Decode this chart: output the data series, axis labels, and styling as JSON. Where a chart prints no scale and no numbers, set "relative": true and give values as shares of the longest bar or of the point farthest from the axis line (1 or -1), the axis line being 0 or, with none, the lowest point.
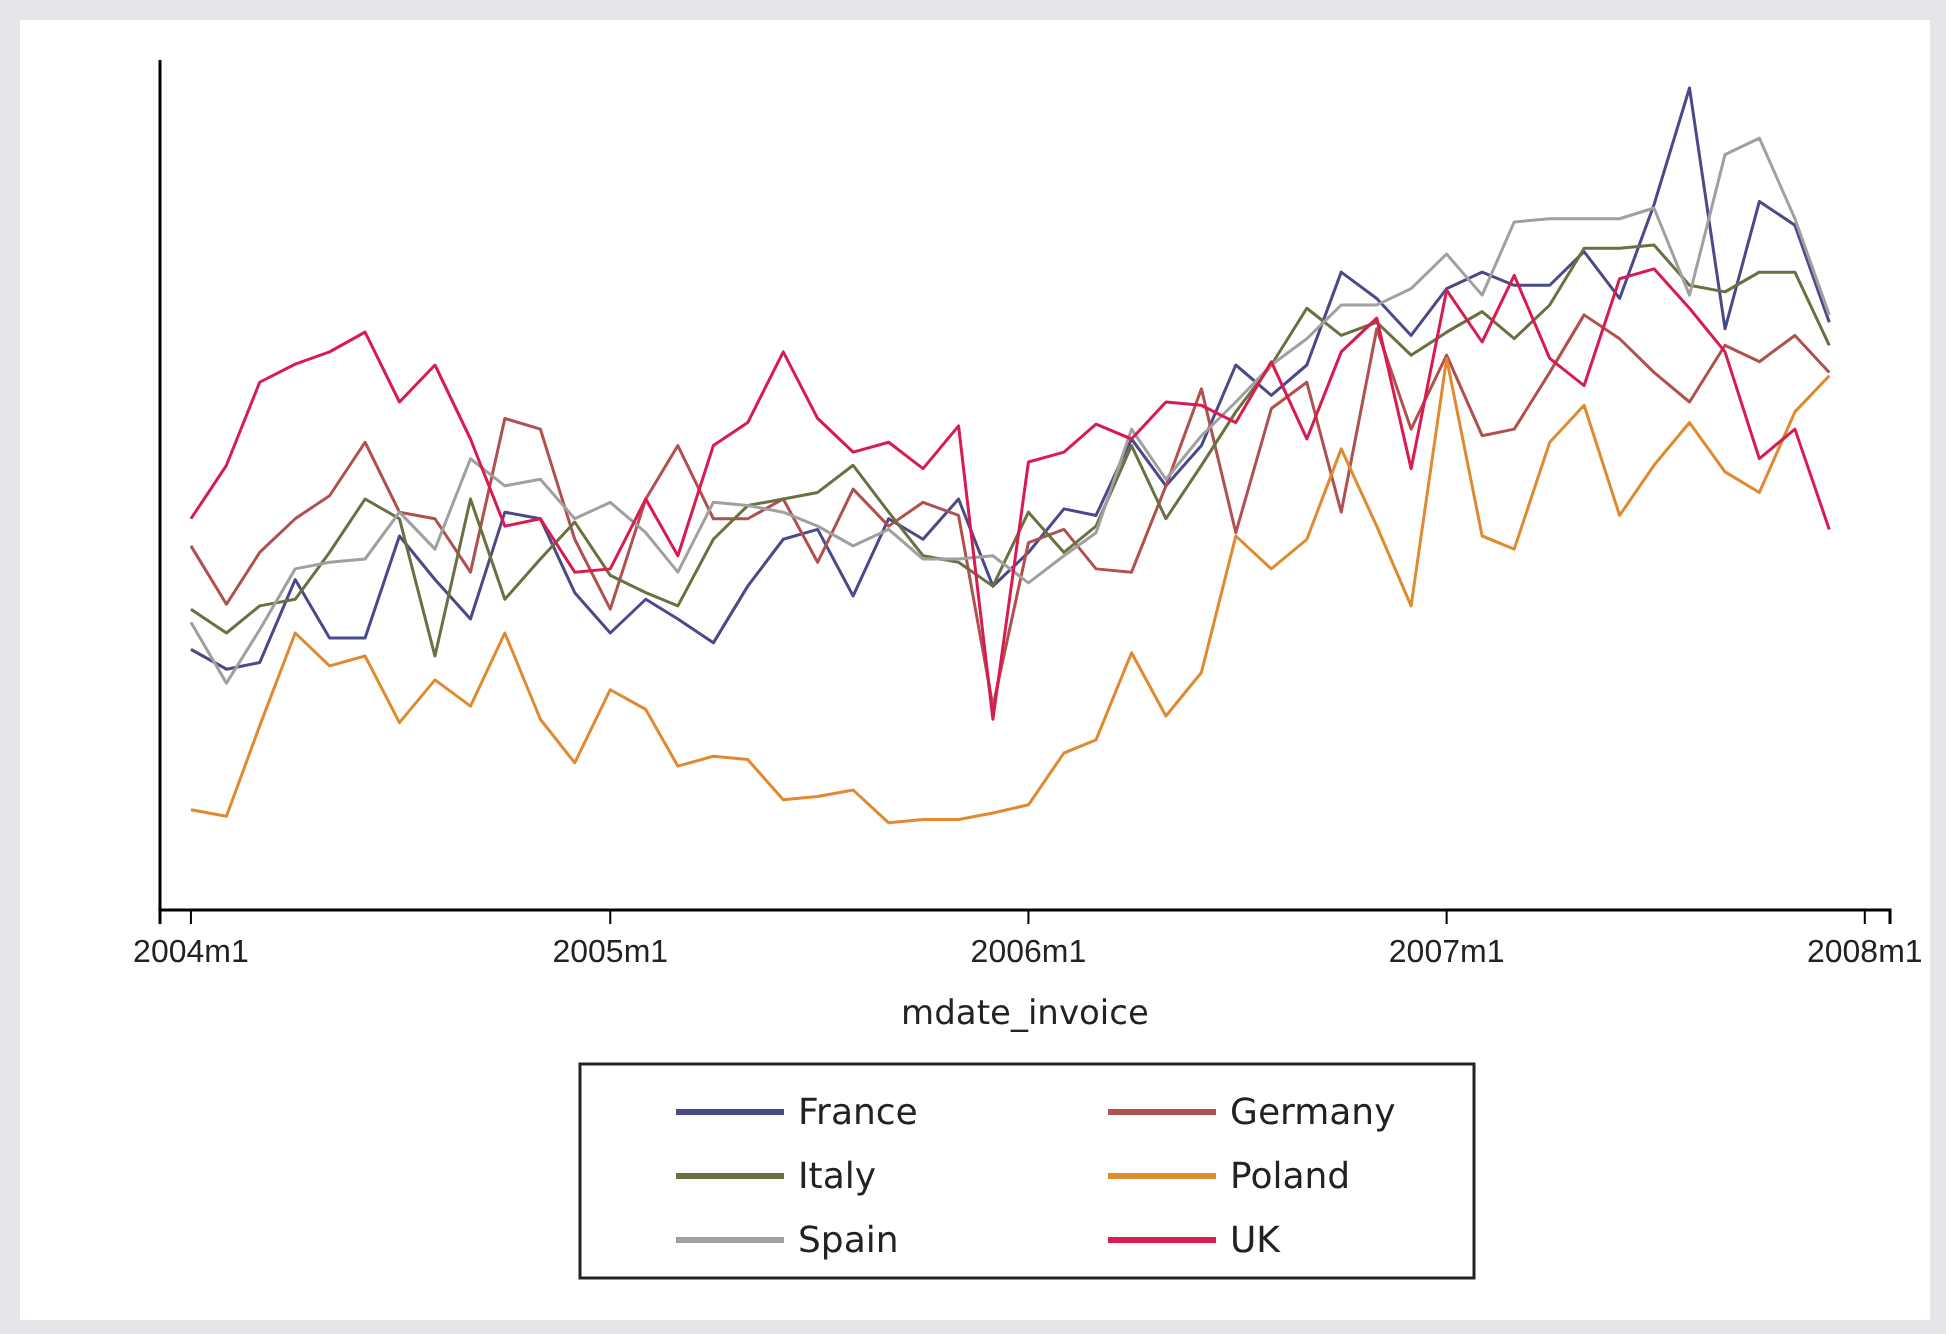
{
  "chart_data": {
    "type": "line",
    "relative": true,
    "xlabel": "mdate_invoice",
    "legend": "bottom",
    "x": [
      "2004-01",
      "2004-02",
      "2004-03",
      "2004-04",
      "2004-05",
      "2004-06",
      "2004-07",
      "2004-08",
      "2004-09",
      "2004-10",
      "2004-11",
      "2004-12",
      "2005-01",
      "2005-02",
      "2005-03",
      "2005-04",
      "2005-05",
      "2005-06",
      "2005-07",
      "2005-08",
      "2005-09",
      "2005-10",
      "2005-11",
      "2005-12",
      "2006-01",
      "2006-02",
      "2006-03",
      "2006-04",
      "2006-05",
      "2006-06",
      "2006-07",
      "2006-08",
      "2006-09",
      "2006-10",
      "2006-11",
      "2006-12",
      "2007-01",
      "2007-02",
      "2007-03",
      "2007-04",
      "2007-05",
      "2007-06",
      "2007-07",
      "2007-08",
      "2007-09",
      "2007-10",
      "2007-11",
      "2007-12"
    ],
    "xlim": [
      "2003-12-05",
      "2008-01-23"
    ],
    "xticks": [
      {
        "value": "2004-01",
        "label": "2004m1"
      },
      {
        "value": "2005-01",
        "label": "2005m1"
      },
      {
        "value": "2006-01",
        "label": "2006m1"
      },
      {
        "value": "2007-01",
        "label": "2007m1"
      },
      {
        "value": "2008-01",
        "label": "2008m1"
      }
    ],
    "series": [
      {
        "name": "France",
        "color": "#4a4a8a",
        "values": [
          0.317,
          0.293,
          0.301,
          0.402,
          0.331,
          0.331,
          0.455,
          0.402,
          0.354,
          0.484,
          0.476,
          0.386,
          0.337,
          0.378,
          0.354,
          0.325,
          0.394,
          0.451,
          0.463,
          0.382,
          0.476,
          0.451,
          0.5,
          0.394,
          0.435,
          0.488,
          0.48,
          0.573,
          0.516,
          0.565,
          0.663,
          0.626,
          0.663,
          0.776,
          0.744,
          0.699,
          0.756,
          0.776,
          0.76,
          0.76,
          0.801,
          0.744,
          0.858,
          1,
          0.707,
          0.862,
          0.833,
          0.715
        ]
      },
      {
        "name": "Germany",
        "color": "#b0504f",
        "values": [
          0.443,
          0.372,
          0.435,
          0.476,
          0.504,
          0.569,
          0.484,
          0.476,
          0.411,
          0.598,
          0.585,
          0.451,
          0.366,
          0.5,
          0.565,
          0.476,
          0.476,
          0.5,
          0.423,
          0.512,
          0.467,
          0.496,
          0.48,
          0.248,
          0.447,
          0.463,
          0.415,
          0.411,
          0.516,
          0.634,
          0.459,
          0.61,
          0.642,
          0.484,
          0.707,
          0.585,
          0.675,
          0.577,
          0.585,
          0.654,
          0.724,
          0.695,
          0.654,
          0.618,
          0.687,
          0.667,
          0.699,
          0.654
        ]
      },
      {
        "name": "Italy",
        "color": "#6b7040",
        "values": [
          0.366,
          0.337,
          0.37,
          0.378,
          0.435,
          0.5,
          0.476,
          0.309,
          0.5,
          0.378,
          0.427,
          0.472,
          0.407,
          0.386,
          0.37,
          0.451,
          0.492,
          0.5,
          0.508,
          0.541,
          0.484,
          0.431,
          0.423,
          0.394,
          0.484,
          0.435,
          0.467,
          0.565,
          0.476,
          0.541,
          0.606,
          0.663,
          0.732,
          0.699,
          0.715,
          0.675,
          0.703,
          0.728,
          0.695,
          0.736,
          0.805,
          0.805,
          0.809,
          0.76,
          0.752,
          0.776,
          0.776,
          0.687
        ]
      },
      {
        "name": "Poland",
        "color": "#e08a30",
        "values": [
          0.122,
          0.114,
          0.224,
          0.337,
          0.297,
          0.309,
          0.228,
          0.28,
          0.248,
          0.337,
          0.232,
          0.179,
          0.268,
          0.244,
          0.175,
          0.187,
          0.183,
          0.134,
          0.138,
          0.146,
          0.106,
          0.11,
          0.11,
          0.118,
          0.128,
          0.191,
          0.207,
          0.313,
          0.236,
          0.289,
          0.455,
          0.415,
          0.451,
          0.561,
          0.467,
          0.37,
          0.671,
          0.455,
          0.439,
          0.569,
          0.614,
          0.48,
          0.541,
          0.593,
          0.533,
          0.508,
          0.606,
          0.65
        ]
      },
      {
        "name": "Spain",
        "color": "#a0a0a0",
        "values": [
          0.35,
          0.276,
          0.341,
          0.415,
          0.423,
          0.427,
          0.484,
          0.439,
          0.549,
          0.516,
          0.524,
          0.476,
          0.496,
          0.459,
          0.411,
          0.496,
          0.492,
          0.484,
          0.467,
          0.443,
          0.463,
          0.427,
          0.427,
          0.431,
          0.398,
          0.431,
          0.459,
          0.585,
          0.524,
          0.577,
          0.618,
          0.663,
          0.695,
          0.736,
          0.736,
          0.756,
          0.798,
          0.748,
          0.837,
          0.841,
          0.841,
          0.841,
          0.854,
          0.748,
          0.919,
          0.939,
          0.841,
          0.724
        ]
      },
      {
        "name": "UK",
        "color": "#d81b50",
        "values": [
          0.476,
          0.541,
          0.642,
          0.664,
          0.679,
          0.703,
          0.618,
          0.663,
          0.573,
          0.467,
          0.476,
          0.411,
          0.415,
          0.5,
          0.431,
          0.565,
          0.593,
          0.679,
          0.598,
          0.557,
          0.569,
          0.537,
          0.589,
          0.232,
          0.545,
          0.557,
          0.591,
          0.573,
          0.618,
          0.614,
          0.593,
          0.667,
          0.573,
          0.679,
          0.72,
          0.537,
          0.754,
          0.691,
          0.772,
          0.671,
          0.638,
          0.768,
          0.78,
          0.732,
          0.679,
          0.549,
          0.585,
          0.463
        ]
      }
    ]
  }
}
